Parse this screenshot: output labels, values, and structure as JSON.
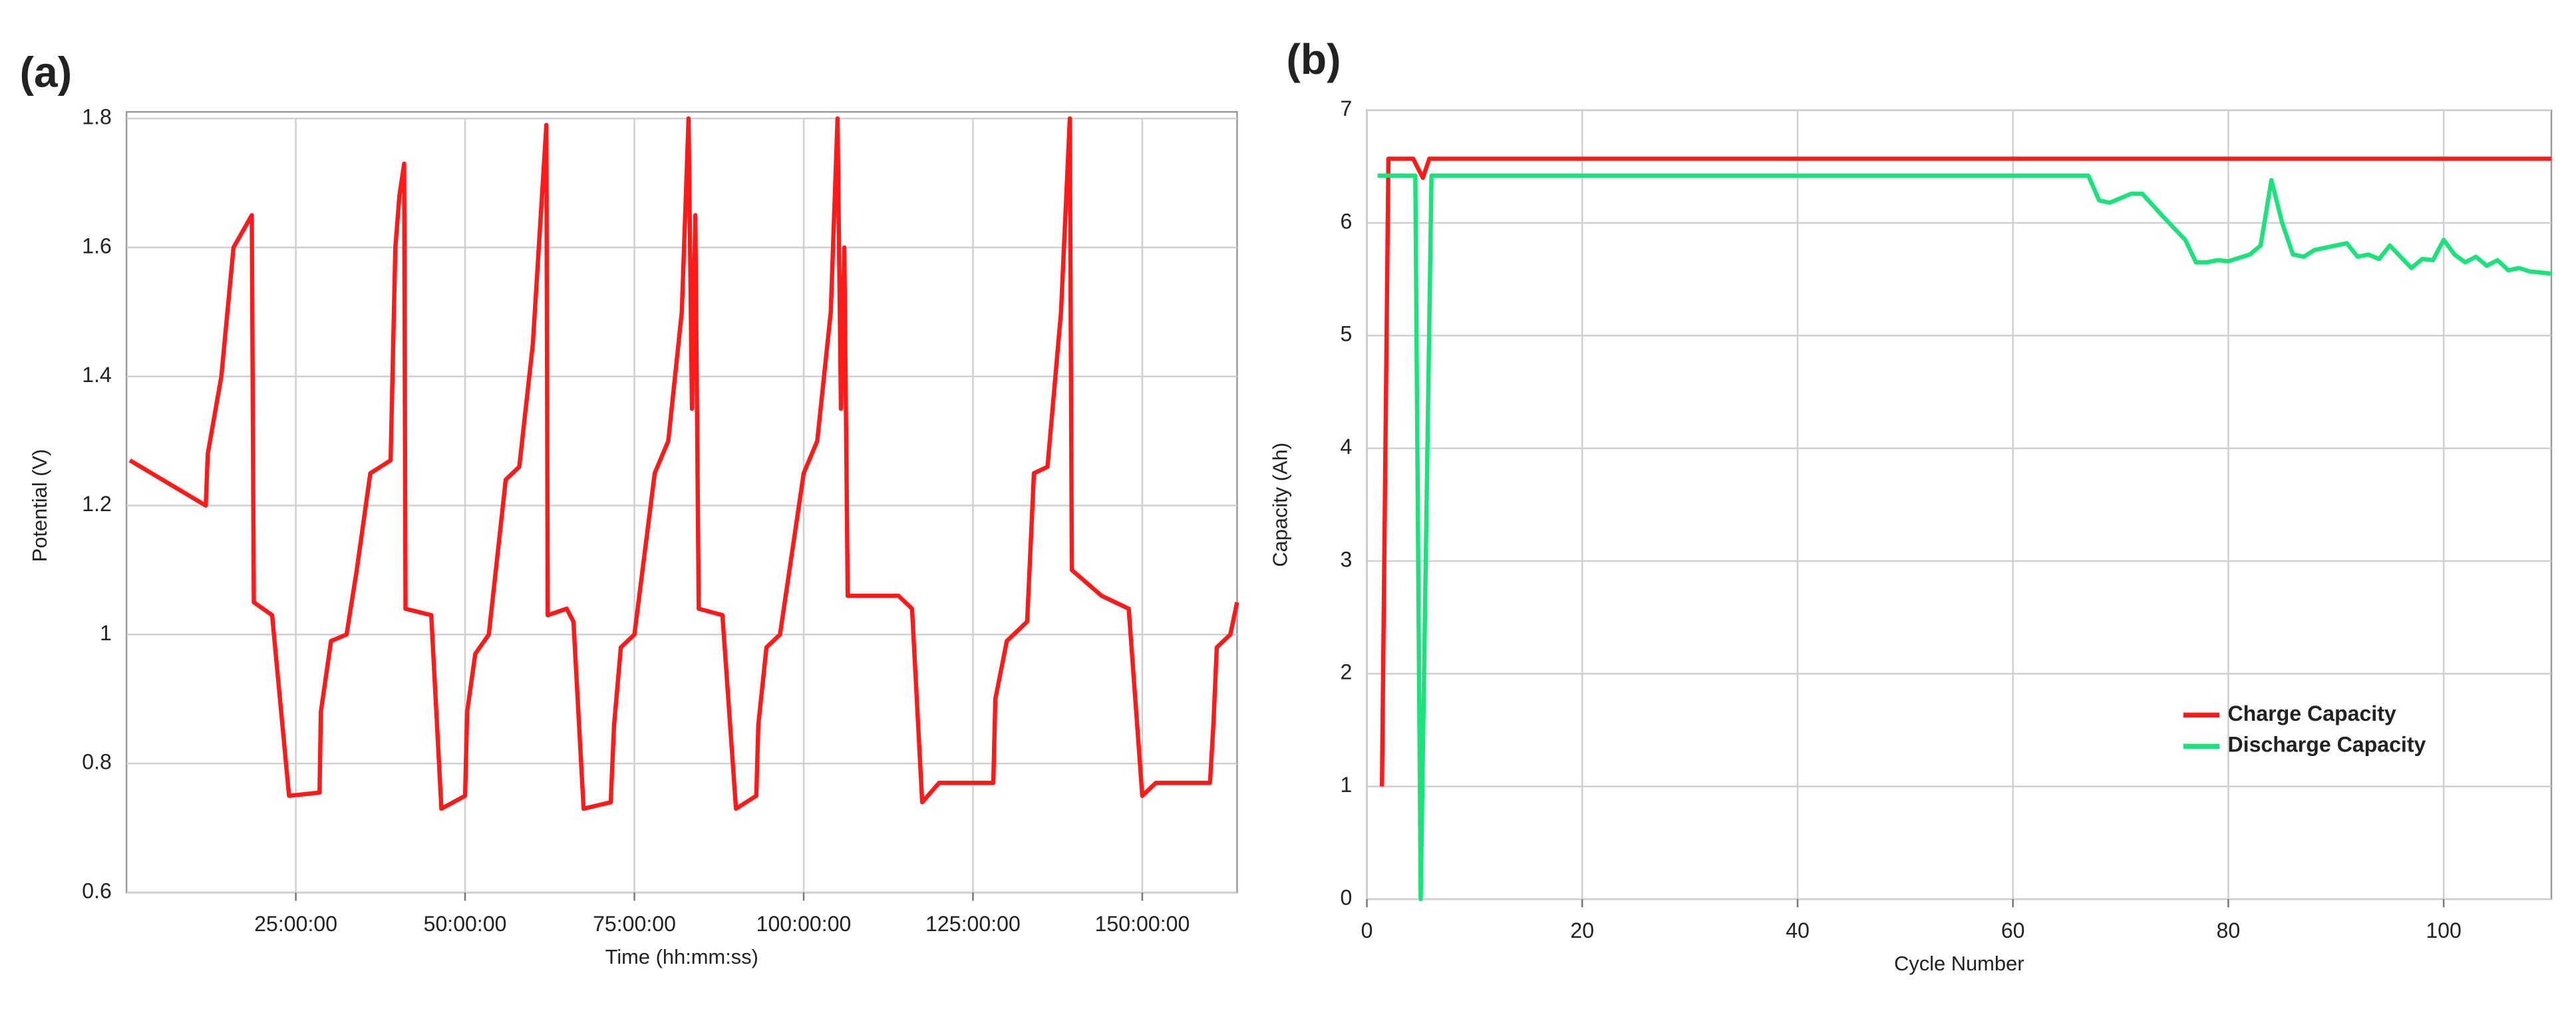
{
  "chart_data": [
    {
      "type": "line",
      "label": "(a)",
      "x_label": "Time (hh:mm:ss)",
      "y_label": "Potential (V)",
      "series": [
        {
          "color": "#ff1a1a",
          "x": [
            0.5,
            11.7,
            12,
            14,
            15.8,
            18.5,
            18.8,
            21.5,
            24,
            28.5,
            28.7,
            30.2,
            32.5,
            34,
            36,
            39,
            39.7,
            40.3,
            41,
            41.2,
            45,
            46.5,
            50,
            50.3,
            51.5,
            53.5,
            56,
            58,
            60,
            62,
            62.2,
            65,
            66,
            67.5,
            71.5,
            72,
            73,
            75,
            78,
            80,
            82,
            83,
            83.5,
            84,
            84.5,
            88,
            90,
            93,
            93.3,
            94.5,
            96.5,
            100,
            102,
            104,
            105,
            105.5,
            106,
            106.5,
            114,
            116,
            117.5,
            120,
            128,
            128.3,
            130,
            133,
            134,
            136,
            138,
            139.3,
            139.6,
            144,
            148,
            150,
            152,
            160,
            160.5,
            161,
            163,
            164
          ],
          "values": [
            1.27,
            1.2,
            1.28,
            1.4,
            1.6,
            1.65,
            1.05,
            1.03,
            0.75,
            0.755,
            0.88,
            0.99,
            1.0,
            1.1,
            1.25,
            1.27,
            1.6,
            1.68,
            1.73,
            1.04,
            1.03,
            0.73,
            0.75,
            0.88,
            0.97,
            1.0,
            1.24,
            1.26,
            1.45,
            1.79,
            1.03,
            1.04,
            1.02,
            0.73,
            0.74,
            0.86,
            0.98,
            1.0,
            1.25,
            1.3,
            1.5,
            1.8,
            1.35,
            1.65,
            1.04,
            1.03,
            0.73,
            0.75,
            0.86,
            0.98,
            1.0,
            1.25,
            1.3,
            1.5,
            1.8,
            1.35,
            1.6,
            1.06,
            1.06,
            1.04,
            0.74,
            0.77,
            0.77,
            0.9,
            0.99,
            1.02,
            1.25,
            1.26,
            1.5,
            1.8,
            1.1,
            1.06,
            1.04,
            0.75,
            0.77,
            0.77,
            0.86,
            0.98,
            1.0,
            1.05
          ]
        }
      ],
      "xlim": [
        0,
        164
      ],
      "ylim": [
        0.6,
        1.8
      ],
      "xticks": [
        {
          "value": 25,
          "label": "25:00:00"
        },
        {
          "value": 50,
          "label": "50:00:00"
        },
        {
          "value": 75,
          "label": "75:00:00"
        },
        {
          "value": 100,
          "label": "100:00:00"
        },
        {
          "value": 125,
          "label": "125:00:00"
        },
        {
          "value": 150,
          "label": "150:00:00"
        }
      ],
      "yticks": [
        0.6,
        0.8,
        1,
        1.2,
        1.4,
        1.6,
        1.8
      ],
      "grid": true
    },
    {
      "type": "line",
      "label": "(b)",
      "x_label": "Cycle Number",
      "y_label": "Capacity (Ah)",
      "series": [
        {
          "name": "Charge Capacity",
          "color": "#ff1a1a",
          "x": [
            1.4,
            2,
            4.3,
            5.2,
            5.8,
            110
          ],
          "values": [
            1,
            6.57,
            6.57,
            6.4,
            6.57,
            6.57
          ]
        },
        {
          "name": "Discharge Capacity",
          "color": "#19e37a",
          "x": [
            1,
            4.5,
            5,
            6,
            67,
            68,
            69,
            70,
            71,
            72,
            74,
            76,
            77,
            78,
            79,
            80,
            82,
            83,
            84,
            85,
            86,
            87,
            88,
            90,
            91,
            92,
            93,
            94,
            95,
            96,
            97,
            98,
            99,
            100,
            101,
            102,
            103,
            104,
            105,
            106,
            107,
            108,
            110
          ],
          "values": [
            6.42,
            6.42,
            0,
            6.42,
            6.42,
            6.2,
            6.18,
            6.22,
            6.26,
            6.26,
            6.05,
            5.85,
            5.65,
            5.65,
            5.67,
            5.66,
            5.72,
            5.8,
            6.38,
            6.0,
            5.72,
            5.7,
            5.76,
            5.8,
            5.82,
            5.7,
            5.72,
            5.68,
            5.8,
            5.7,
            5.6,
            5.68,
            5.67,
            5.85,
            5.72,
            5.65,
            5.7,
            5.62,
            5.67,
            5.58,
            5.6,
            5.57,
            5.55
          ]
        }
      ],
      "xlim": [
        0,
        110
      ],
      "ylim": [
        0,
        7
      ],
      "xticks": [
        0,
        20,
        40,
        60,
        80,
        100
      ],
      "yticks": [
        0,
        1,
        2,
        3,
        4,
        5,
        6,
        7
      ],
      "grid": true,
      "legend": "lower right"
    }
  ]
}
